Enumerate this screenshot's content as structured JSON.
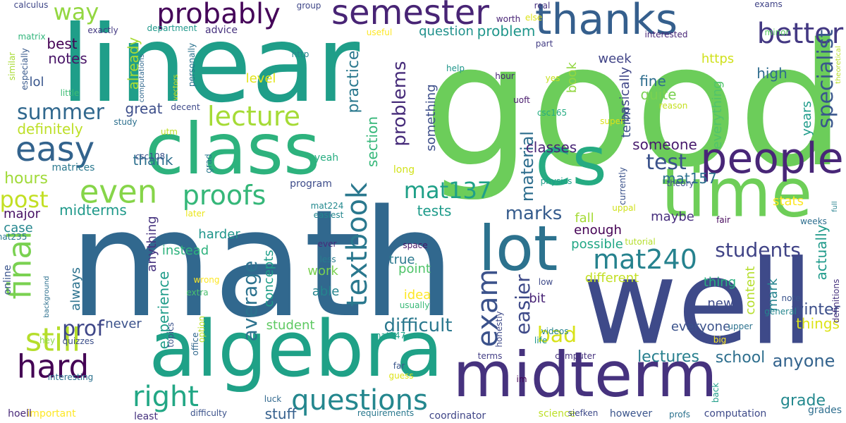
{
  "cloud": {
    "words": [
      {
        "text": "good",
        "color": "#6ccd5a"
      },
      {
        "text": "math",
        "color": "#31688e"
      },
      {
        "text": "linear",
        "color": "#1f9e89"
      },
      {
        "text": "well",
        "color": "#3e4a89"
      },
      {
        "text": "algebra",
        "color": "#1fa187"
      },
      {
        "text": "class",
        "color": "#2db27d"
      },
      {
        "text": "time",
        "color": "#6ece58"
      },
      {
        "text": "midterm",
        "color": "#46327e"
      },
      {
        "text": "cs",
        "color": "#25ab82"
      },
      {
        "text": "lot",
        "color": "#2c728e"
      },
      {
        "text": "people",
        "color": "#482677"
      },
      {
        "text": "thanks",
        "color": "#355f8d"
      },
      {
        "text": "semester",
        "color": "#482475"
      },
      {
        "text": "probably",
        "color": "#450559"
      },
      {
        "text": "easy",
        "color": "#33638d"
      },
      {
        "text": "questions",
        "color": "#24878e"
      },
      {
        "text": "textbook",
        "color": "#2a788e"
      },
      {
        "text": "exam",
        "color": "#3b528b"
      },
      {
        "text": "even",
        "color": "#86d549"
      },
      {
        "text": "hard",
        "color": "#440154"
      },
      {
        "text": "final",
        "color": "#7ad151"
      },
      {
        "text": "still",
        "color": "#b5de2b"
      },
      {
        "text": "proofs",
        "color": "#35b779"
      },
      {
        "text": "lecture",
        "color": "#a5db36"
      },
      {
        "text": "mat240",
        "color": "#26828e"
      },
      {
        "text": "summer",
        "color": "#31688e"
      },
      {
        "text": "right",
        "color": "#22a785"
      },
      {
        "text": "better",
        "color": "#443983"
      },
      {
        "text": "mat137",
        "color": "#1fa088"
      },
      {
        "text": "specialist",
        "color": "#39568c"
      },
      {
        "text": "students",
        "color": "#414487"
      },
      {
        "text": "average",
        "color": "#2c728e"
      },
      {
        "text": "way",
        "color": "#93d741"
      },
      {
        "text": "difficult",
        "color": "#2a788e"
      },
      {
        "text": "easier",
        "color": "#3e4a89"
      },
      {
        "text": "test",
        "color": "#3b528b"
      },
      {
        "text": "problems",
        "color": "#472c7a"
      },
      {
        "text": "marks",
        "color": "#365c8d"
      },
      {
        "text": "post",
        "color": "#c2df23"
      },
      {
        "text": "bad",
        "color": "#d8e219"
      },
      {
        "text": "prof",
        "color": "#3f4788"
      },
      {
        "text": "anyone",
        "color": "#33638d"
      },
      {
        "text": "material",
        "color": "#2e6e8e"
      },
      {
        "text": "practice",
        "color": "#2a788e"
      },
      {
        "text": "actually",
        "color": "#1f9a8a"
      },
      {
        "text": "lectures",
        "color": "#277f8e"
      },
      {
        "text": "school",
        "color": "#2e6f8e"
      },
      {
        "text": "grade",
        "color": "#23898e"
      },
      {
        "text": "hours",
        "color": "#a0da39"
      },
      {
        "text": "things",
        "color": "#dde318"
      },
      {
        "text": "winter",
        "color": "#3c4f8a"
      },
      {
        "text": "stuff",
        "color": "#35608d"
      },
      {
        "text": "mat157",
        "color": "#2c718e"
      },
      {
        "text": "experience",
        "color": "#1e9c89"
      },
      {
        "text": "fine",
        "color": "#2e6e8e"
      },
      {
        "text": "quite",
        "color": "#7ad151"
      },
      {
        "text": "high",
        "color": "#2f6c8e"
      },
      {
        "text": "someone",
        "color": "#481b6d"
      },
      {
        "text": "classes",
        "color": "#482576"
      },
      {
        "text": "tests",
        "color": "#1e9b8a"
      },
      {
        "text": "midterms",
        "color": "#1f998a"
      },
      {
        "text": "thank",
        "color": "#2d708e"
      },
      {
        "text": "notes",
        "color": "#481467"
      },
      {
        "text": "best",
        "color": "#440154"
      },
      {
        "text": "lol",
        "color": "#39568c"
      },
      {
        "text": "great",
        "color": "#3d4e8a"
      },
      {
        "text": "definitely",
        "color": "#bddf26"
      },
      {
        "text": "already",
        "color": "#a8db34"
      },
      {
        "text": "problem",
        "color": "#1f968b"
      },
      {
        "text": "question",
        "color": "#21918c"
      },
      {
        "text": "week",
        "color": "#414487"
      },
      {
        "text": "https",
        "color": "#d0e11c"
      },
      {
        "text": "level",
        "color": "#e2e418"
      },
      {
        "text": "book",
        "color": "#93d741"
      },
      {
        "text": "basically",
        "color": "#404688"
      },
      {
        "text": "everything",
        "color": "#50c46a"
      },
      {
        "text": "years",
        "color": "#1e9b8a"
      },
      {
        "text": "section",
        "color": "#35b779"
      },
      {
        "text": "something",
        "color": "#3d4e8a"
      },
      {
        "text": "term",
        "color": "#3b528b"
      },
      {
        "text": "major",
        "color": "#471164"
      },
      {
        "text": "case",
        "color": "#24868e"
      },
      {
        "text": "harder",
        "color": "#1f958b"
      },
      {
        "text": "anything",
        "color": "#46337f"
      },
      {
        "text": "always",
        "color": "#2c728e"
      },
      {
        "text": "instead",
        "color": "#2db27d"
      },
      {
        "text": "concepts",
        "color": "#1f9e89"
      },
      {
        "text": "work",
        "color": "#7ad151"
      },
      {
        "text": "able",
        "color": "#25848e"
      },
      {
        "text": "true",
        "color": "#2a788e"
      },
      {
        "text": "idea",
        "color": "#fde725"
      },
      {
        "text": "point",
        "color": "#50c46a"
      },
      {
        "text": "bit",
        "color": "#482475"
      },
      {
        "text": "different",
        "color": "#c2df23"
      },
      {
        "text": "enough",
        "color": "#440154"
      },
      {
        "text": "maybe",
        "color": "#472f7d"
      },
      {
        "text": "fall",
        "color": "#a5db36"
      },
      {
        "text": "possible",
        "color": "#22a785"
      },
      {
        "text": "stats",
        "color": "#fde725"
      },
      {
        "text": "thing",
        "color": "#29af7f"
      },
      {
        "text": "mark",
        "color": "#25848e"
      },
      {
        "text": "new",
        "color": "#3e4a89"
      },
      {
        "text": "everyone",
        "color": "#3b528b"
      },
      {
        "text": "content",
        "color": "#b5de2b"
      },
      {
        "text": "never",
        "color": "#3b528b"
      },
      {
        "text": "student",
        "color": "#5ec962"
      },
      {
        "text": "online",
        "color": "#3a548c"
      },
      {
        "text": "long",
        "color": "#d2e21b"
      },
      {
        "text": "program",
        "color": "#3e4c8a"
      },
      {
        "text": "yeah",
        "color": "#27ad81"
      },
      {
        "text": "advice",
        "color": "#46327e"
      },
      {
        "text": "matrices",
        "color": "#2a788e"
      },
      {
        "text": "least",
        "color": "#46327e"
      },
      {
        "text": "important",
        "color": "#fde725"
      },
      {
        "text": "hoell",
        "color": "#482878"
      },
      {
        "text": "coordinator",
        "color": "#404688"
      },
      {
        "text": "science",
        "color": "#bddf26"
      },
      {
        "text": "however",
        "color": "#3a548c"
      },
      {
        "text": "computation",
        "color": "#3e4a89"
      },
      {
        "text": "grades",
        "color": "#2e6e8e"
      },
      {
        "text": "calculus",
        "color": "#3f4788"
      },
      {
        "text": "matrix",
        "color": "#31b57b"
      },
      {
        "text": "exactly",
        "color": "#443a83"
      },
      {
        "text": "department",
        "color": "#1f988b"
      },
      {
        "text": "useful",
        "color": "#fde725"
      },
      {
        "text": "group",
        "color": "#3f4788"
      },
      {
        "text": "real",
        "color": "#46307e"
      },
      {
        "text": "worth",
        "color": "#482475"
      },
      {
        "text": "else",
        "color": "#dde318"
      },
      {
        "text": "exams",
        "color": "#414487"
      },
      {
        "text": "minor",
        "color": "#5cc863"
      },
      {
        "text": "theoretical",
        "color": "#b8de29"
      },
      {
        "text": "interested",
        "color": "#482677"
      },
      {
        "text": "part",
        "color": "#433d84"
      },
      {
        "text": "http",
        "color": "#24868e"
      },
      {
        "text": "hour",
        "color": "#482576"
      },
      {
        "text": "help",
        "color": "#1f968b"
      },
      {
        "text": "similar",
        "color": "#a8db34"
      },
      {
        "text": "especially",
        "color": "#38598c"
      },
      {
        "text": "little",
        "color": "#3dbc74"
      },
      {
        "text": "computations",
        "color": "#31688e"
      },
      {
        "text": "vectors",
        "color": "#d5e21a"
      },
      {
        "text": "personally",
        "color": "#2c728e"
      },
      {
        "text": "yes",
        "color": "#c8e020"
      },
      {
        "text": "uoft",
        "color": "#481a6c"
      },
      {
        "text": "csc165",
        "color": "#25ac82"
      },
      {
        "text": "reason",
        "color": "#c5e021"
      },
      {
        "text": "super",
        "color": "#dde318"
      },
      {
        "text": "currently",
        "color": "#3b528b"
      },
      {
        "text": "theory",
        "color": "#3d4d8a"
      },
      {
        "text": "full",
        "color": "#26818e"
      },
      {
        "text": "decent",
        "color": "#3e4989"
      },
      {
        "text": "study",
        "color": "#2d708e"
      },
      {
        "text": "utm",
        "color": "#bddf26"
      },
      {
        "text": "csc108",
        "color": "#3b528b"
      },
      {
        "text": "grad",
        "color": "#2a788e"
      },
      {
        "text": "physics",
        "color": "#1f9e89"
      },
      {
        "text": "uppal",
        "color": "#d0e11c"
      },
      {
        "text": "later",
        "color": "#eae51a"
      },
      {
        "text": "mat224",
        "color": "#23898e"
      },
      {
        "text": "easiest",
        "color": "#24868e"
      },
      {
        "text": "weeks",
        "color": "#2e6e8e"
      },
      {
        "text": "fair",
        "color": "#46085c"
      },
      {
        "text": "mat235",
        "color": "#2a788e"
      },
      {
        "text": "tutorial",
        "color": "#b5de2b"
      },
      {
        "text": "ever",
        "color": "#472a7a"
      },
      {
        "text": "space",
        "color": "#481769"
      },
      {
        "text": "less",
        "color": "#287c8e"
      },
      {
        "text": "background",
        "color": "#2d708e"
      },
      {
        "text": "low",
        "color": "#3e4a89"
      },
      {
        "text": "wrong",
        "color": "#fde725"
      },
      {
        "text": "extra",
        "color": "#4ac16d"
      },
      {
        "text": "usually",
        "color": "#38b977"
      },
      {
        "text": "note",
        "color": "#3a548c"
      },
      {
        "text": "definitions",
        "color": "#46327e"
      },
      {
        "text": "general",
        "color": "#24868e"
      },
      {
        "text": "upper",
        "color": "#2c728e"
      },
      {
        "text": "hey",
        "color": "#8bd646"
      },
      {
        "text": "quizzes",
        "color": "#3c4f8a"
      },
      {
        "text": "interesting",
        "color": "#2c718e"
      },
      {
        "text": "topics",
        "color": "#3b528b"
      },
      {
        "text": "office",
        "color": "#31688e"
      },
      {
        "text": "option",
        "color": "#bddf26"
      },
      {
        "text": "honestly",
        "color": "#3e4a89"
      },
      {
        "text": "mat247",
        "color": "#1fa088"
      },
      {
        "text": "videos",
        "color": "#25848e"
      },
      {
        "text": "life",
        "color": "#1f968b"
      },
      {
        "text": "terms",
        "color": "#433e85"
      },
      {
        "text": "computer",
        "color": "#46327e"
      },
      {
        "text": "big",
        "color": "#fde725"
      },
      {
        "text": "far",
        "color": "#39568c"
      },
      {
        "text": "guess",
        "color": "#dde318"
      },
      {
        "text": "im",
        "color": "#440154"
      },
      {
        "text": "luck",
        "color": "#31688e"
      },
      {
        "text": "back",
        "color": "#1f9e89"
      },
      {
        "text": "requirements",
        "color": "#2a788e"
      },
      {
        "text": "siefken",
        "color": "#3e4a89"
      },
      {
        "text": "profs",
        "color": "#2c728e"
      },
      {
        "text": "difficulty",
        "color": "#3b528b"
      }
    ]
  }
}
